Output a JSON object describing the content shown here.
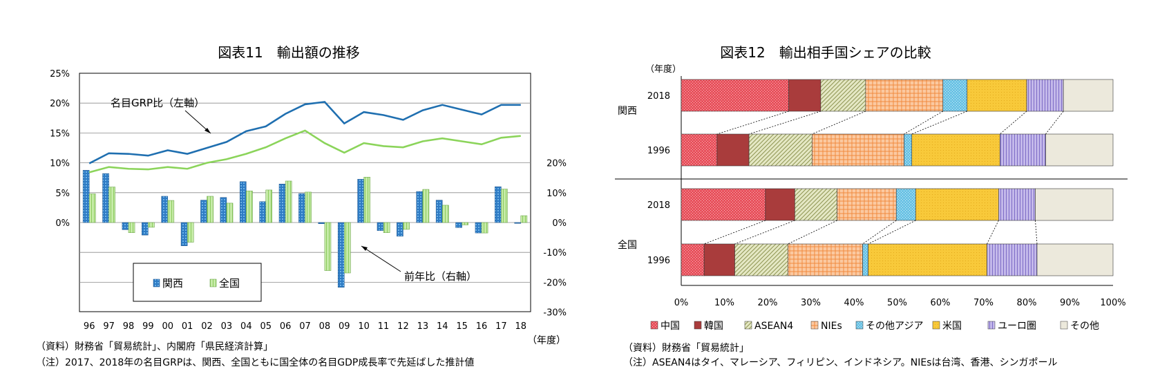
{
  "left": {
    "title": "図表11　輸出額の推移",
    "annotation_nominal": "名目GRP比（左軸）",
    "annotation_yoy": "前年比（右軸）",
    "x_unit": "（年度）",
    "legend": [
      "関西",
      "全国"
    ],
    "source": "（資料）財務省「貿易統計」、内閣府「県民経済計算」",
    "note": "（注）2017、2018年の名目GRPは、関西、全国ともに国全体の名目GDP成長率で先延ばした推計値",
    "colors": {
      "kansai_line": "#1F6FB0",
      "zenkoku_line": "#8BD45A",
      "kansai_bar": "#2E7BC4",
      "zenkoku_bar": "#B7E39A",
      "grid": "#888888"
    }
  },
  "right": {
    "title": "図表12　輸出相手国シェアの比較",
    "y_unit": "（年度）",
    "group_kansai": "関西",
    "group_zenkoku": "全国",
    "source": "（資料）財務省「貿易統計」",
    "note": "（注）ASEAN4はタイ、マレーシア、フィリピン、インドネシア。NIEsは台湾、香港、シンガポール",
    "colors": [
      "#E8515C",
      "#A93C3C",
      "#E5E8C4",
      "#F9A76A",
      "#6CC3E5",
      "#F8C93A",
      "#A99ADA",
      "#ECE9DC"
    ]
  },
  "chart_data": [
    {
      "type": "line+bar",
      "title": "図表11　輸出額の推移",
      "categories": [
        "96",
        "97",
        "98",
        "99",
        "00",
        "01",
        "02",
        "03",
        "04",
        "05",
        "06",
        "07",
        "08",
        "09",
        "10",
        "11",
        "12",
        "13",
        "14",
        "15",
        "16",
        "17",
        "18"
      ],
      "ylim_left": [
        0,
        25
      ],
      "yticks_left": [
        "0%",
        "5%",
        "10%",
        "15%",
        "20%",
        "25%"
      ],
      "ylim_right": [
        -30,
        20
      ],
      "yticks_right": [
        "20%",
        "10%",
        "0%",
        "-10%",
        "-20%",
        "-30%"
      ],
      "lines": [
        {
          "name": "関西",
          "values": [
            9.9,
            11.6,
            11.5,
            11.2,
            12.1,
            11.5,
            12.5,
            13.5,
            15.3,
            16.1,
            18.2,
            19.8,
            20.2,
            16.6,
            18.5,
            18.0,
            17.2,
            18.8,
            19.7,
            18.9,
            18.1,
            19.7,
            19.7
          ]
        },
        {
          "name": "全国",
          "values": [
            8.4,
            9.3,
            9.0,
            8.9,
            9.3,
            9.0,
            10.0,
            10.6,
            11.5,
            12.6,
            14.1,
            15.4,
            13.3,
            11.7,
            13.3,
            12.8,
            12.6,
            13.6,
            14.1,
            13.6,
            13.1,
            14.2,
            14.5
          ]
        }
      ],
      "bars": [
        {
          "name": "関西",
          "values": [
            17.5,
            16.4,
            -2.4,
            -4.2,
            8.8,
            -7.8,
            7.5,
            8.4,
            13.7,
            7.0,
            12.9,
            9.7,
            -0.4,
            -21.7,
            14.5,
            -2.7,
            -4.6,
            10.4,
            7.5,
            -1.7,
            -3.5,
            12.0,
            -0.3
          ]
        },
        {
          "name": "全国",
          "values": [
            9.6,
            11.9,
            -3.4,
            -1.6,
            7.4,
            -6.6,
            8.8,
            6.5,
            10.6,
            10.9,
            13.9,
            10.2,
            -16.1,
            -16.9,
            15.2,
            -3.4,
            -2.3,
            11.1,
            5.8,
            -0.8,
            -3.5,
            11.2,
            2.3
          ]
        }
      ],
      "legend": [
        "関西",
        "全国"
      ]
    },
    {
      "type": "bar",
      "orientation": "horizontal",
      "stacked": true,
      "title": "図表12　輸出相手国シェアの比較",
      "categories": [
        "関西 2018",
        "関西 1996",
        "全国 2018",
        "全国 1996"
      ],
      "xlim": [
        0,
        100
      ],
      "xticks": [
        "0%",
        "10%",
        "20%",
        "30%",
        "40%",
        "50%",
        "60%",
        "70%",
        "80%",
        "90%",
        "100%"
      ],
      "series": [
        {
          "name": "中国",
          "values": [
            24.9,
            8.3,
            19.5,
            5.3
          ]
        },
        {
          "name": "韓国",
          "values": [
            7.4,
            7.4,
            6.8,
            7.1
          ]
        },
        {
          "name": "ASEAN4",
          "values": [
            10.4,
            14.6,
            9.8,
            12.3
          ]
        },
        {
          "name": "NIEs",
          "values": [
            17.9,
            21.3,
            13.7,
            17.3
          ]
        },
        {
          "name": "その他アジア",
          "values": [
            5.6,
            1.8,
            4.5,
            1.3
          ]
        },
        {
          "name": "米国",
          "values": [
            13.8,
            20.4,
            19.2,
            27.5
          ]
        },
        {
          "name": "ユーロ圏",
          "values": [
            8.5,
            10.6,
            8.5,
            11.6
          ]
        },
        {
          "name": "その他",
          "values": [
            11.5,
            15.6,
            18.0,
            17.6
          ]
        }
      ],
      "legend": [
        "中国",
        "韓国",
        "ASEAN4",
        "NIEs",
        "その他アジア",
        "米国",
        "ユーロ圏",
        "その他"
      ]
    }
  ]
}
